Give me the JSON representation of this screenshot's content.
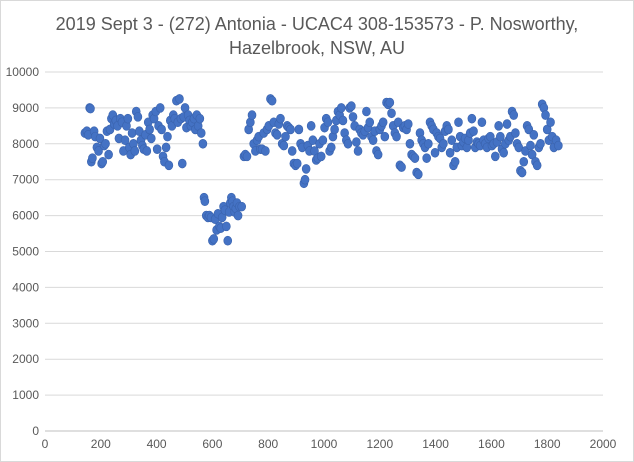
{
  "chart_data": {
    "type": "scatter",
    "title_lines": [
      "2019 Sept 3 - (272) Antonia - UCAC4 308-153573 - P. Nosworthy,",
      "Hazelbrook, NSW, AU"
    ],
    "xlabel": "",
    "ylabel": "",
    "xlim": [
      0,
      2000
    ],
    "ylim": [
      0,
      10000
    ],
    "x_ticks": [
      0,
      200,
      400,
      600,
      800,
      1000,
      1200,
      1400,
      1600,
      1800,
      2000
    ],
    "y_ticks": [
      0,
      1000,
      2000,
      3000,
      4000,
      5000,
      6000,
      7000,
      8000,
      9000,
      10000
    ],
    "grid": "horizontal",
    "legend": "none",
    "marker_color": "#4472c4",
    "points": [
      [
        143,
        8300
      ],
      [
        150,
        8350
      ],
      [
        155,
        8250
      ],
      [
        160,
        9000
      ],
      [
        163,
        8980
      ],
      [
        166,
        7500
      ],
      [
        170,
        7600
      ],
      [
        176,
        8350
      ],
      [
        180,
        8200
      ],
      [
        186,
        7900
      ],
      [
        192,
        7800
      ],
      [
        197,
        8150
      ],
      [
        203,
        7450
      ],
      [
        207,
        7500
      ],
      [
        212,
        7950
      ],
      [
        217,
        8000
      ],
      [
        222,
        8350
      ],
      [
        228,
        7700
      ],
      [
        233,
        8400
      ],
      [
        238,
        8700
      ],
      [
        243,
        8800
      ],
      [
        248,
        8550
      ],
      [
        254,
        8650
      ],
      [
        260,
        8500
      ],
      [
        265,
        8150
      ],
      [
        270,
        8700
      ],
      [
        276,
        8600
      ],
      [
        281,
        7800
      ],
      [
        287,
        8100
      ],
      [
        292,
        8500
      ],
      [
        297,
        8700
      ],
      [
        302,
        7900
      ],
      [
        307,
        7700
      ],
      [
        312,
        8300
      ],
      [
        317,
        8000
      ],
      [
        322,
        7800
      ],
      [
        327,
        8900
      ],
      [
        333,
        8750
      ],
      [
        338,
        8350
      ],
      [
        344,
        8100
      ],
      [
        349,
        7950
      ],
      [
        354,
        7850
      ],
      [
        360,
        8250
      ],
      [
        365,
        7800
      ],
      [
        370,
        8600
      ],
      [
        375,
        8400
      ],
      [
        381,
        8150
      ],
      [
        386,
        8800
      ],
      [
        391,
        8700
      ],
      [
        397,
        8900
      ],
      [
        402,
        7850
      ],
      [
        407,
        8500
      ],
      [
        413,
        9000
      ],
      [
        418,
        8400
      ],
      [
        423,
        7650
      ],
      [
        428,
        7500
      ],
      [
        434,
        7900
      ],
      [
        439,
        8200
      ],
      [
        444,
        7400
      ],
      [
        449,
        8650
      ],
      [
        455,
        8500
      ],
      [
        460,
        8800
      ],
      [
        465,
        8700
      ],
      [
        471,
        9200
      ],
      [
        476,
        8600
      ],
      [
        482,
        9250
      ],
      [
        487,
        8700
      ],
      [
        492,
        7450
      ],
      [
        497,
        8750
      ],
      [
        502,
        9000
      ],
      [
        507,
        8450
      ],
      [
        513,
        8800
      ],
      [
        518,
        8650
      ],
      [
        523,
        8500
      ],
      [
        528,
        8600
      ],
      [
        534,
        8700
      ],
      [
        539,
        8400
      ],
      [
        544,
        8800
      ],
      [
        549,
        8500
      ],
      [
        555,
        8700
      ],
      [
        560,
        8300
      ],
      [
        566,
        8000
      ],
      [
        570,
        6500
      ],
      [
        573,
        6400
      ],
      [
        578,
        6000
      ],
      [
        584,
        5950
      ],
      [
        589,
        6000
      ],
      [
        595,
        5950
      ],
      [
        600,
        5300
      ],
      [
        605,
        5350
      ],
      [
        610,
        5900
      ],
      [
        615,
        5600
      ],
      [
        620,
        6050
      ],
      [
        625,
        5700
      ],
      [
        630,
        5650
      ],
      [
        635,
        5950
      ],
      [
        640,
        6250
      ],
      [
        645,
        6150
      ],
      [
        650,
        5700
      ],
      [
        655,
        5300
      ],
      [
        660,
        6100
      ],
      [
        664,
        6350
      ],
      [
        668,
        6500
      ],
      [
        672,
        6400
      ],
      [
        676,
        6250
      ],
      [
        680,
        6100
      ],
      [
        684,
        6200
      ],
      [
        688,
        6350
      ],
      [
        692,
        6000
      ],
      [
        697,
        6250
      ],
      [
        705,
        6250
      ],
      [
        713,
        7650
      ],
      [
        718,
        7700
      ],
      [
        724,
        7650
      ],
      [
        730,
        8400
      ],
      [
        736,
        8600
      ],
      [
        742,
        8800
      ],
      [
        748,
        8000
      ],
      [
        754,
        7800
      ],
      [
        760,
        8100
      ],
      [
        766,
        8200
      ],
      [
        772,
        7850
      ],
      [
        778,
        7850
      ],
      [
        784,
        8300
      ],
      [
        790,
        7800
      ],
      [
        796,
        8400
      ],
      [
        802,
        8500
      ],
      [
        808,
        9250
      ],
      [
        814,
        9200
      ],
      [
        820,
        8600
      ],
      [
        826,
        8300
      ],
      [
        832,
        8250
      ],
      [
        838,
        8550
      ],
      [
        844,
        8700
      ],
      [
        850,
        8000
      ],
      [
        856,
        7950
      ],
      [
        862,
        8200
      ],
      [
        868,
        8500
      ],
      [
        874,
        8450
      ],
      [
        880,
        8400
      ],
      [
        886,
        7800
      ],
      [
        892,
        7450
      ],
      [
        898,
        7400
      ],
      [
        904,
        7450
      ],
      [
        910,
        8400
      ],
      [
        916,
        8000
      ],
      [
        922,
        7900
      ],
      [
        928,
        6900
      ],
      [
        932,
        7000
      ],
      [
        936,
        7300
      ],
      [
        942,
        7950
      ],
      [
        948,
        7800
      ],
      [
        954,
        8500
      ],
      [
        960,
        8100
      ],
      [
        966,
        7800
      ],
      [
        972,
        7550
      ],
      [
        978,
        7600
      ],
      [
        984,
        8000
      ],
      [
        990,
        7650
      ],
      [
        996,
        8100
      ],
      [
        1002,
        8450
      ],
      [
        1008,
        8700
      ],
      [
        1014,
        8600
      ],
      [
        1020,
        7800
      ],
      [
        1026,
        7900
      ],
      [
        1032,
        8200
      ],
      [
        1038,
        8400
      ],
      [
        1044,
        8650
      ],
      [
        1050,
        8900
      ],
      [
        1056,
        8800
      ],
      [
        1062,
        9000
      ],
      [
        1068,
        8650
      ],
      [
        1074,
        8300
      ],
      [
        1080,
        8100
      ],
      [
        1086,
        8000
      ],
      [
        1092,
        9000
      ],
      [
        1098,
        9050
      ],
      [
        1104,
        8750
      ],
      [
        1110,
        8500
      ],
      [
        1116,
        8050
      ],
      [
        1122,
        7800
      ],
      [
        1128,
        8400
      ],
      [
        1134,
        8300
      ],
      [
        1140,
        8250
      ],
      [
        1146,
        8350
      ],
      [
        1152,
        8900
      ],
      [
        1158,
        8450
      ],
      [
        1164,
        8600
      ],
      [
        1170,
        8200
      ],
      [
        1176,
        8100
      ],
      [
        1182,
        8350
      ],
      [
        1188,
        7800
      ],
      [
        1194,
        7700
      ],
      [
        1200,
        8400
      ],
      [
        1206,
        8500
      ],
      [
        1212,
        8600
      ],
      [
        1218,
        8200
      ],
      [
        1224,
        9150
      ],
      [
        1230,
        9100
      ],
      [
        1236,
        9150
      ],
      [
        1242,
        8850
      ],
      [
        1248,
        8500
      ],
      [
        1254,
        8300
      ],
      [
        1260,
        8200
      ],
      [
        1266,
        8600
      ],
      [
        1272,
        7400
      ],
      [
        1278,
        7350
      ],
      [
        1284,
        8450
      ],
      [
        1290,
        8500
      ],
      [
        1296,
        8400
      ],
      [
        1302,
        8550
      ],
      [
        1308,
        8000
      ],
      [
        1314,
        7700
      ],
      [
        1320,
        7650
      ],
      [
        1326,
        7600
      ],
      [
        1332,
        7200
      ],
      [
        1338,
        7150
      ],
      [
        1344,
        8300
      ],
      [
        1350,
        8100
      ],
      [
        1356,
        8000
      ],
      [
        1362,
        7900
      ],
      [
        1368,
        7600
      ],
      [
        1374,
        8000
      ],
      [
        1380,
        8600
      ],
      [
        1386,
        8500
      ],
      [
        1392,
        8400
      ],
      [
        1398,
        7750
      ],
      [
        1404,
        8300
      ],
      [
        1410,
        8200
      ],
      [
        1416,
        8150
      ],
      [
        1422,
        7900
      ],
      [
        1428,
        8000
      ],
      [
        1434,
        8350
      ],
      [
        1440,
        8500
      ],
      [
        1446,
        8400
      ],
      [
        1452,
        7750
      ],
      [
        1458,
        8100
      ],
      [
        1464,
        7400
      ],
      [
        1470,
        7500
      ],
      [
        1476,
        7900
      ],
      [
        1482,
        8600
      ],
      [
        1488,
        8200
      ],
      [
        1494,
        7950
      ],
      [
        1500,
        8050
      ],
      [
        1506,
        8150
      ],
      [
        1512,
        7900
      ],
      [
        1518,
        8100
      ],
      [
        1524,
        8300
      ],
      [
        1530,
        8700
      ],
      [
        1536,
        8350
      ],
      [
        1542,
        7900
      ],
      [
        1548,
        8050
      ],
      [
        1554,
        8000
      ],
      [
        1560,
        7950
      ],
      [
        1566,
        8600
      ],
      [
        1572,
        8100
      ],
      [
        1578,
        8000
      ],
      [
        1584,
        7900
      ],
      [
        1590,
        8150
      ],
      [
        1596,
        8200
      ],
      [
        1602,
        7950
      ],
      [
        1608,
        8000
      ],
      [
        1614,
        7650
      ],
      [
        1620,
        8050
      ],
      [
        1626,
        8500
      ],
      [
        1632,
        8200
      ],
      [
        1638,
        7850
      ],
      [
        1644,
        7750
      ],
      [
        1650,
        8000
      ],
      [
        1656,
        8550
      ],
      [
        1662,
        8100
      ],
      [
        1668,
        8200
      ],
      [
        1674,
        8900
      ],
      [
        1680,
        8800
      ],
      [
        1686,
        8300
      ],
      [
        1692,
        8000
      ],
      [
        1698,
        7900
      ],
      [
        1704,
        7250
      ],
      [
        1710,
        7200
      ],
      [
        1716,
        7500
      ],
      [
        1722,
        7800
      ],
      [
        1728,
        8500
      ],
      [
        1734,
        8400
      ],
      [
        1740,
        7950
      ],
      [
        1746,
        7700
      ],
      [
        1752,
        8250
      ],
      [
        1758,
        7500
      ],
      [
        1764,
        7400
      ],
      [
        1770,
        7900
      ],
      [
        1776,
        8000
      ],
      [
        1782,
        9100
      ],
      [
        1788,
        9000
      ],
      [
        1794,
        8800
      ],
      [
        1800,
        8400
      ],
      [
        1806,
        8100
      ],
      [
        1812,
        8600
      ],
      [
        1818,
        8200
      ],
      [
        1824,
        7900
      ],
      [
        1832,
        8100
      ],
      [
        1840,
        7950
      ]
    ]
  }
}
